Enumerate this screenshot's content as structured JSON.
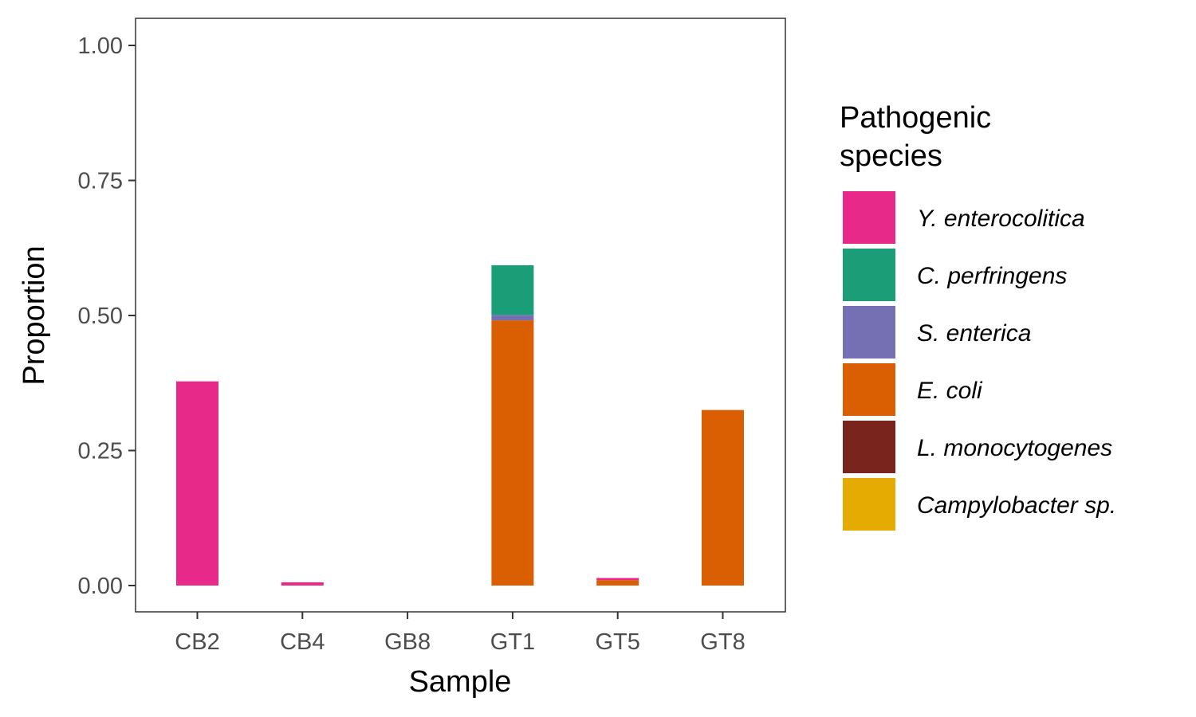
{
  "chart_data": {
    "type": "bar",
    "stacked": true,
    "xlabel": "Sample",
    "ylabel": "Proportion",
    "ylim": [
      0,
      1
    ],
    "yticks": [
      "0.00",
      "0.25",
      "0.50",
      "0.75",
      "1.00"
    ],
    "categories": [
      "CB2",
      "CB4",
      "GB8",
      "GT1",
      "GT5",
      "GT8"
    ],
    "legend": {
      "title_lines": [
        "Pathogenic",
        "species"
      ],
      "placement": "right"
    },
    "grid": false,
    "series": [
      {
        "name": "Y. enterocolitica",
        "color": "#E7298A",
        "values": [
          0.378,
          0.006,
          0,
          0,
          0.004,
          0
        ]
      },
      {
        "name": "C. perfringens",
        "color": "#1B9E77",
        "values": [
          0,
          0,
          0,
          0.092,
          0,
          0
        ]
      },
      {
        "name": "S. enterica",
        "color": "#7570B3",
        "values": [
          0,
          0,
          0,
          0.01,
          0,
          0
        ]
      },
      {
        "name": "E. coli",
        "color": "#D95F02",
        "values": [
          0,
          0,
          0,
          0.491,
          0.01,
          0.325
        ]
      },
      {
        "name": "L. monocytogenes",
        "color": "#7A241E",
        "values": [
          0,
          0,
          0,
          0,
          0,
          0
        ]
      },
      {
        "name": "Campylobacter sp.",
        "color": "#E6AB02",
        "values": [
          0,
          0,
          0,
          0,
          0,
          0
        ]
      }
    ]
  }
}
